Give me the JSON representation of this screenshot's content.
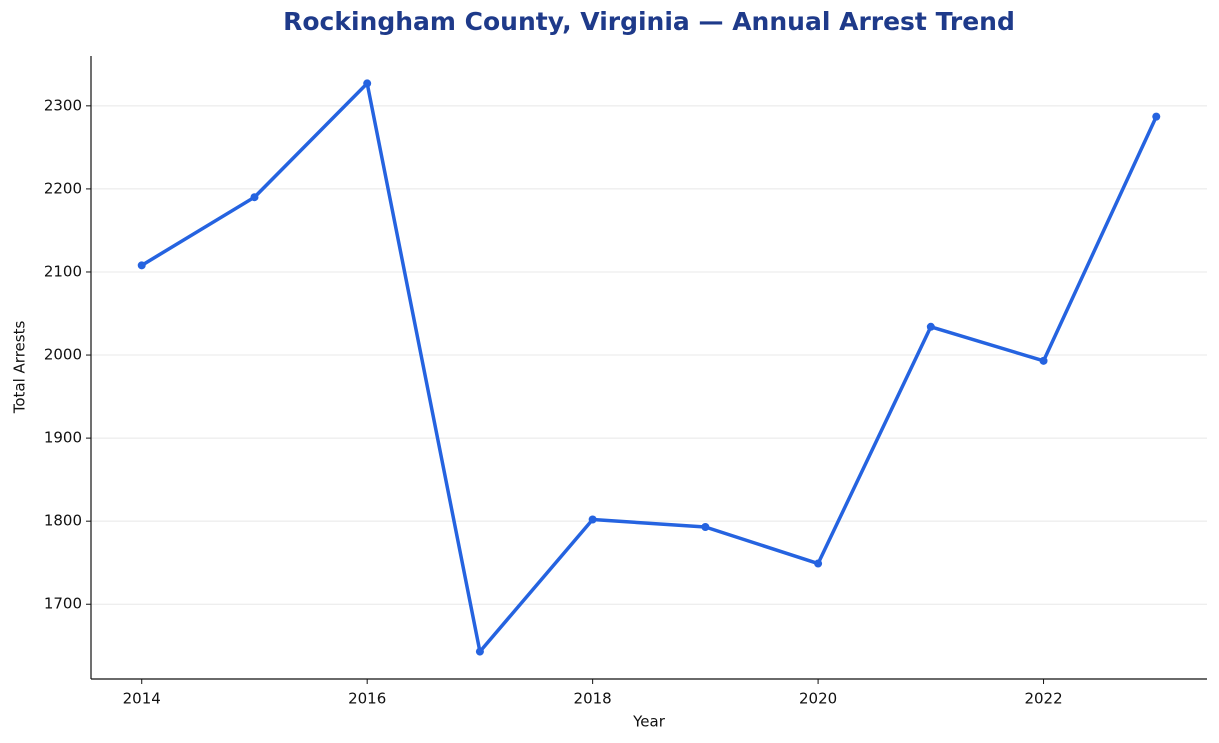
{
  "chart_data": {
    "type": "line",
    "title": "Rockingham County, Virginia — Annual Arrest Trend",
    "x_label": "Year",
    "y_label": "Total Arrests",
    "x": [
      2014,
      2015,
      2016,
      2017,
      2018,
      2019,
      2020,
      2021,
      2022,
      2023
    ],
    "series": [
      {
        "name": "Total Arrests",
        "color": "#2563e0",
        "values": [
          2108,
          2190,
          2327,
          1643,
          1802,
          1793,
          1749,
          2034,
          1993,
          2287
        ]
      }
    ],
    "xlim": [
      2013.55,
      2023.45
    ],
    "xticks": [
      2014,
      2016,
      2018,
      2020,
      2022
    ],
    "ylim": [
      1610,
      2360
    ],
    "yticks": [
      1700,
      1800,
      1900,
      2000,
      2100,
      2200,
      2300
    ],
    "grid": true,
    "legend": false
  }
}
